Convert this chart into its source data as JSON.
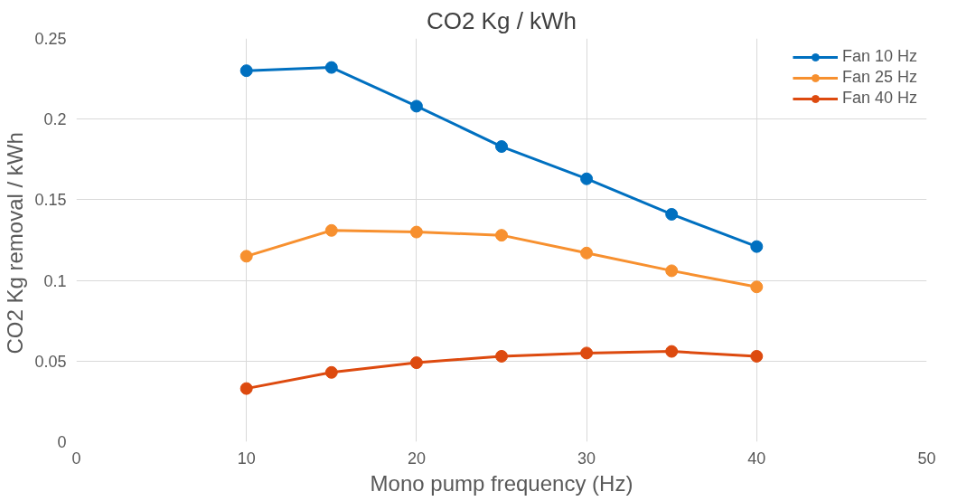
{
  "chart_data": {
    "type": "line",
    "title": "CO2 Kg / kWh",
    "xlabel": "Mono pump frequency (Hz)",
    "ylabel": "CO2  Kg removal / kWh",
    "x": [
      10,
      15,
      20,
      25,
      30,
      35,
      40
    ],
    "series": [
      {
        "name": "Fan 10 Hz",
        "color": "#0070c0",
        "values": [
          0.23,
          0.232,
          0.208,
          0.183,
          0.163,
          0.141,
          0.121
        ]
      },
      {
        "name": "Fan 25 Hz",
        "color": "#f7902f",
        "values": [
          0.115,
          0.131,
          0.13,
          0.128,
          0.117,
          0.106,
          0.096
        ]
      },
      {
        "name": "Fan 40 Hz",
        "color": "#dd4a0f",
        "values": [
          0.033,
          0.043,
          0.049,
          0.053,
          0.055,
          0.056,
          0.053
        ]
      }
    ],
    "xlim": [
      0,
      50
    ],
    "xticks": [
      0,
      10,
      20,
      30,
      40,
      50
    ],
    "ylim": [
      0,
      0.25
    ],
    "yticks": [
      0,
      0.05,
      0.1,
      0.15,
      0.2,
      0.25
    ],
    "grid": true,
    "legend": "top right",
    "marker": "circle",
    "line_style": "solid"
  }
}
